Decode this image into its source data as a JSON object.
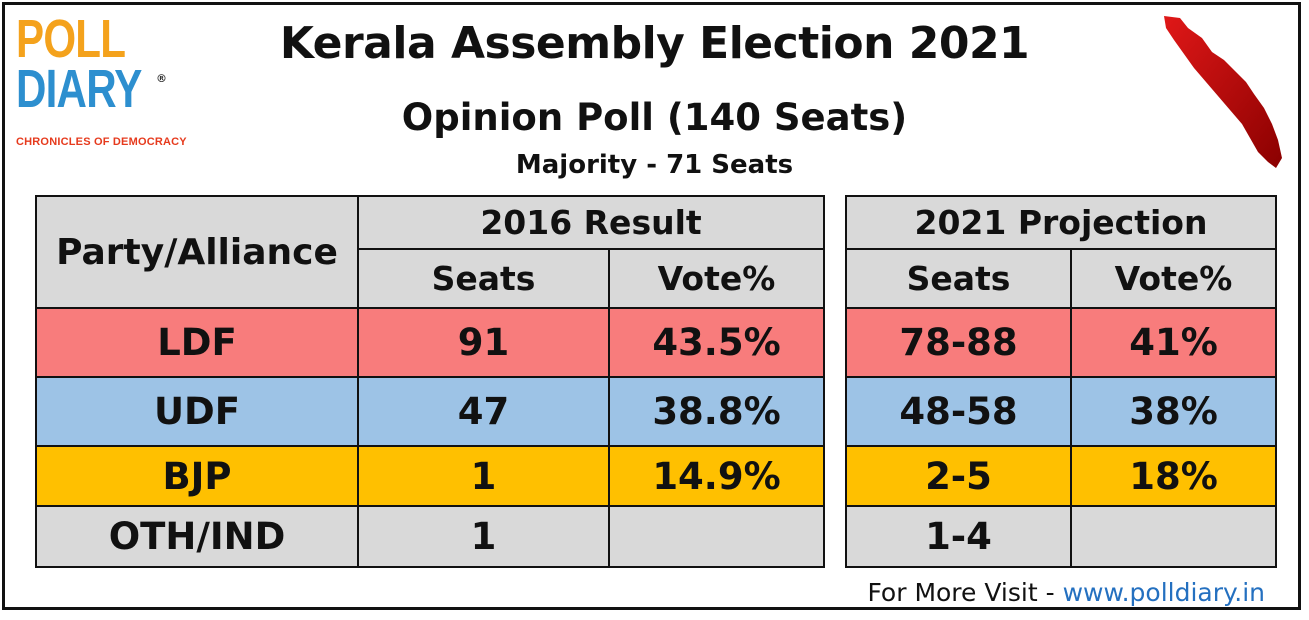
{
  "logo": {
    "line1": "POLL",
    "line2": "DIARY",
    "registered": "®",
    "tagline": "CHRONICLES OF DEMOCRACY"
  },
  "title": "Kerala Assembly Election 2021",
  "subtitle": "Opinion Poll (140 Seats)",
  "majority": "Majority - 71 Seats",
  "colors": {
    "ldf": "#f87c7c",
    "udf": "#9dc3e6",
    "bjp": "#ffc000",
    "oth": "#d9d9d9",
    "header": "#d9d9d9",
    "map": "#c00000"
  },
  "chart_data": {
    "type": "table",
    "header": {
      "party": "Party/Alliance",
      "group_2016": "2016 Result",
      "group_2021": "2021 Projection",
      "seats": "Seats",
      "vote": "Vote%"
    },
    "rows": [
      {
        "party": "LDF",
        "seats_2016": "91",
        "vote_2016": "43.5%",
        "seats_2021": "78-88",
        "vote_2021": "41%"
      },
      {
        "party": "UDF",
        "seats_2016": "47",
        "vote_2016": "38.8%",
        "seats_2021": "48-58",
        "vote_2021": "38%"
      },
      {
        "party": "BJP",
        "seats_2016": "1",
        "vote_2016": "14.9%",
        "seats_2021": "2-5",
        "vote_2021": "18%"
      },
      {
        "party": "OTH/IND",
        "seats_2016": "1",
        "vote_2016": "",
        "seats_2021": "1-4",
        "vote_2021": ""
      }
    ]
  },
  "footer": {
    "prefix": "For More Visit - ",
    "url": "www.polldiary.in"
  }
}
